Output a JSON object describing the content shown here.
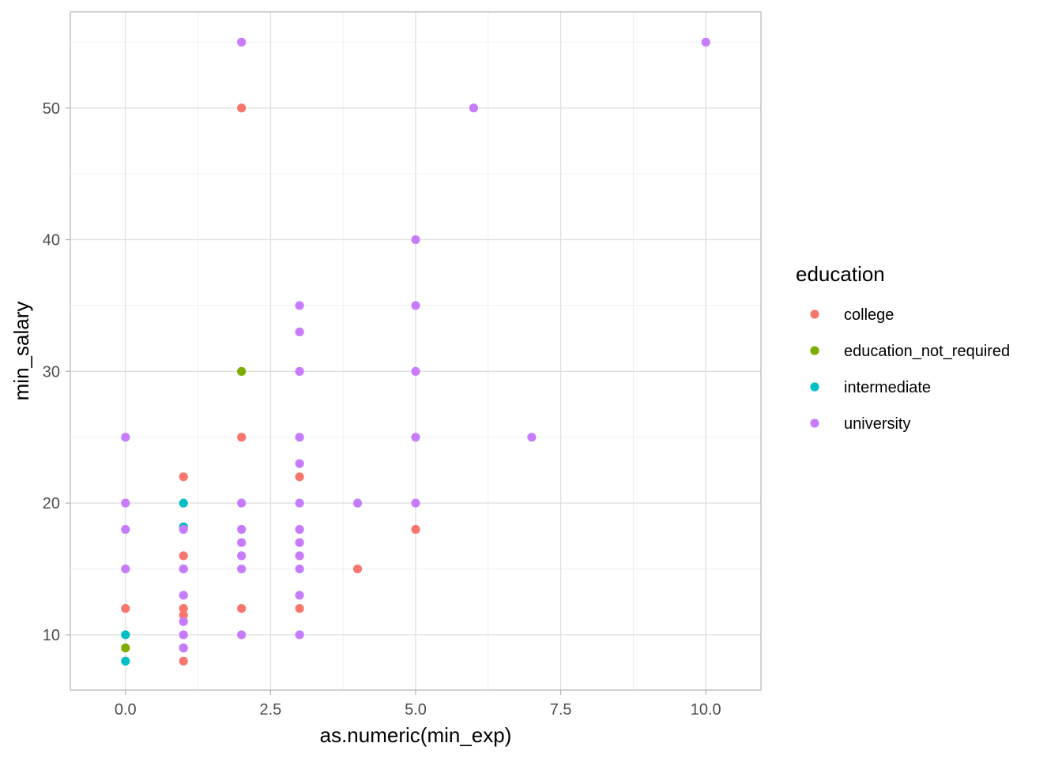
{
  "chart_data": {
    "type": "scatter",
    "xlabel": "as.numeric(min_exp)",
    "ylabel": "min_salary",
    "xlim": [
      -0.95,
      10.95
    ],
    "ylim": [
      5.8,
      57.3
    ],
    "x_ticks": [
      0,
      2.5,
      5,
      7.5,
      10
    ],
    "x_tick_labels": [
      "0.0",
      "2.5",
      "5.0",
      "7.5",
      "10.0"
    ],
    "y_ticks": [
      10,
      20,
      30,
      40,
      50
    ],
    "y_tick_labels": [
      "10",
      "20",
      "30",
      "40",
      "50"
    ],
    "grid": true,
    "legend": {
      "title": "education",
      "position": "right"
    },
    "series": [
      {
        "name": "college",
        "color": "#F8766D",
        "points": [
          [
            0,
            12
          ],
          [
            1,
            22
          ],
          [
            1,
            16
          ],
          [
            1,
            12
          ],
          [
            1,
            11.5
          ],
          [
            1,
            8
          ],
          [
            2,
            50
          ],
          [
            2,
            25
          ],
          [
            2,
            12
          ],
          [
            3,
            22
          ],
          [
            3,
            12
          ],
          [
            4,
            15
          ],
          [
            5,
            18
          ]
        ]
      },
      {
        "name": "education_not_required",
        "color": "#7CAE00",
        "points": [
          [
            0,
            9
          ],
          [
            2,
            30
          ]
        ]
      },
      {
        "name": "intermediate",
        "color": "#00BFC4",
        "points": [
          [
            0,
            10
          ],
          [
            0,
            8
          ],
          [
            1,
            20
          ],
          [
            1,
            18.2
          ],
          [
            1,
            15
          ],
          [
            1,
            9
          ]
        ]
      },
      {
        "name": "university",
        "color": "#C77CFF",
        "points": [
          [
            0,
            25
          ],
          [
            0,
            20
          ],
          [
            0,
            18
          ],
          [
            0,
            15
          ],
          [
            1,
            18
          ],
          [
            1,
            15
          ],
          [
            1,
            13
          ],
          [
            1,
            11
          ],
          [
            1,
            10
          ],
          [
            1,
            9
          ],
          [
            2,
            55
          ],
          [
            2,
            20
          ],
          [
            2,
            18
          ],
          [
            2,
            17
          ],
          [
            2,
            16
          ],
          [
            2,
            15
          ],
          [
            2,
            10
          ],
          [
            3,
            35
          ],
          [
            3,
            33
          ],
          [
            3,
            30
          ],
          [
            3,
            25
          ],
          [
            3,
            23
          ],
          [
            3,
            20
          ],
          [
            3,
            18
          ],
          [
            3,
            17
          ],
          [
            3,
            16
          ],
          [
            3,
            15
          ],
          [
            3,
            13
          ],
          [
            3,
            10
          ],
          [
            4,
            20
          ],
          [
            5,
            40
          ],
          [
            5,
            35
          ],
          [
            5,
            30
          ],
          [
            5,
            25
          ],
          [
            5,
            20
          ],
          [
            6,
            50
          ],
          [
            7,
            25
          ],
          [
            10,
            55
          ]
        ]
      }
    ]
  }
}
